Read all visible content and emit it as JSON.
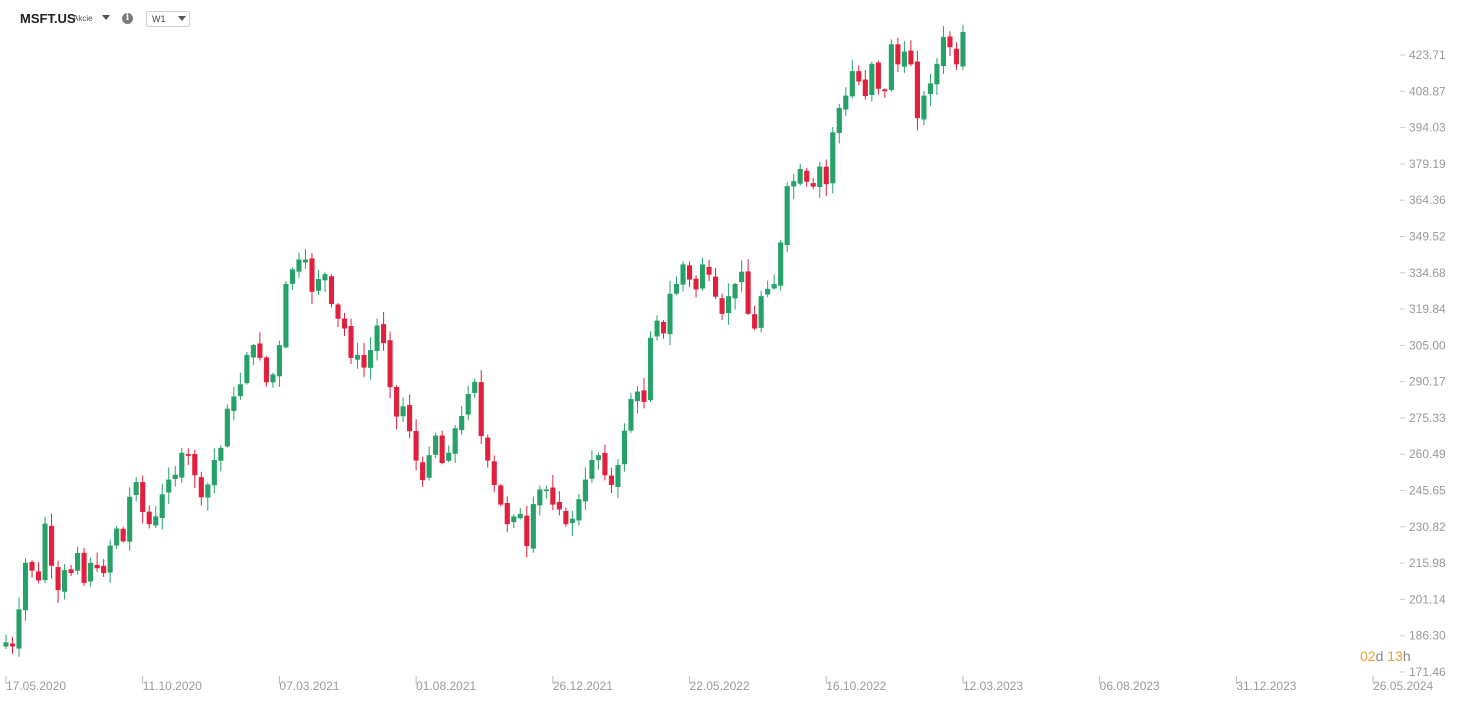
{
  "toolbar": {
    "symbol": "MSFT.US",
    "instrument_type": "Akcie",
    "symbol_dropdown_icon": "chevron-down-icon",
    "info_icon": "info-icon",
    "timeframe": "W1"
  },
  "countdown": {
    "days": "02",
    "days_unit": "d",
    "hours": "13",
    "hours_unit": "h"
  },
  "colors": {
    "up": "#26a269",
    "down": "#e0203c",
    "axis_text": "#9a9a9a",
    "countdown": "#f0a030"
  },
  "chart_data": {
    "type": "candlestick",
    "title": "",
    "xlabel": "",
    "ylabel": "",
    "grid": false,
    "ylim": [
      171.46,
      438.55
    ],
    "y_ticks": [
      "423.71",
      "408.87",
      "394.03",
      "379.19",
      "364.36",
      "349.52",
      "334.68",
      "319.84",
      "305.00",
      "290.17",
      "275.33",
      "260.49",
      "245.65",
      "230.82",
      "215.98",
      "201.14",
      "186.30",
      "171.46"
    ],
    "x_tick_labels": [
      "17.05.2020",
      "11.10.2020",
      "07.03.2021",
      "01.08.2021",
      "26.12.2021",
      "22.05.2022",
      "16.10.2022",
      "12.03.2023",
      "06.08.2023",
      "31.12.2023",
      "26.05.2024"
    ],
    "x_tick_week_index": [
      0,
      21,
      42,
      63,
      84,
      105,
      126,
      147,
      168,
      189,
      210
    ],
    "ohlc_weekly_anchor_close": [
      183.5,
      182,
      197,
      216,
      213,
      209,
      232,
      215,
      205,
      213,
      212,
      220,
      208,
      216,
      214,
      212,
      223,
      230,
      225,
      243,
      249,
      237,
      232,
      235,
      244,
      250,
      252,
      261,
      260,
      252,
      243,
      248,
      258,
      263,
      279,
      284,
      289,
      301,
      305,
      300,
      290,
      293,
      305,
      330,
      336,
      340,
      340,
      327,
      332,
      334,
      322,
      316,
      312,
      300,
      301,
      296,
      303,
      313,
      306,
      288,
      276,
      280,
      270,
      258,
      250,
      260,
      268,
      257,
      261,
      271,
      276,
      285,
      290,
      268,
      258,
      248,
      240,
      232,
      235,
      236,
      223,
      240,
      246,
      246,
      240,
      238,
      232,
      234,
      242,
      250,
      258,
      260,
      252,
      248,
      256,
      270,
      283,
      286,
      282,
      308,
      315,
      310,
      326,
      330,
      338,
      332,
      328,
      338,
      334,
      325,
      318,
      325,
      330,
      335,
      318,
      312,
      325,
      328,
      330,
      347,
      370,
      372,
      377,
      372,
      370,
      378,
      371,
      392,
      402,
      407,
      417,
      413,
      407,
      420,
      410,
      409,
      428,
      420,
      425,
      420,
      398,
      407,
      412,
      420,
      431,
      427,
      420,
      433
    ]
  }
}
